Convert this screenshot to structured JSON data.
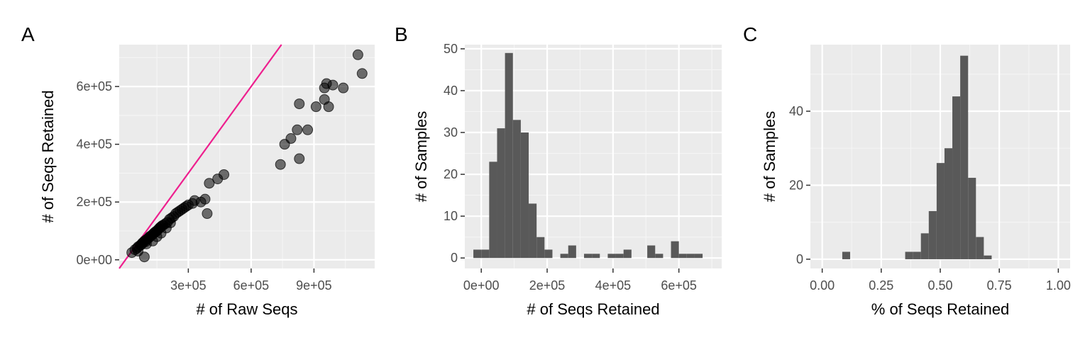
{
  "colors": {
    "panel_bg": "#ebebeb",
    "grid_major": "#ffffff",
    "grid_minor": "#f5f5f5",
    "bar_fill": "#595959",
    "point_fill": "#000000",
    "reference_line": "#ee1f8e",
    "tick_label": "#4d4d4d"
  },
  "chart_data": [
    {
      "panel": "A",
      "type": "scatter",
      "xlabel": "# of Raw Seqs",
      "ylabel": "# of Seqs Retained",
      "xlim": [
        -30000,
        1190000
      ],
      "ylim": [
        -30000,
        745000
      ],
      "x_ticks": [
        300000,
        600000,
        900000
      ],
      "x_tick_labels": [
        "3e+05",
        "6e+05",
        "9e+05"
      ],
      "y_ticks": [
        0,
        200000,
        400000,
        600000
      ],
      "y_tick_labels": [
        "0e+00",
        "2e+05",
        "4e+05",
        "6e+05"
      ],
      "grid": true,
      "reference_line": {
        "slope": 1,
        "intercept": 0,
        "color": "#ee1f8e"
      },
      "points": [
        [
          30000,
          25000
        ],
        [
          45000,
          35000
        ],
        [
          55000,
          40000
        ],
        [
          60000,
          45000
        ],
        [
          70000,
          50000
        ],
        [
          75000,
          52000
        ],
        [
          80000,
          58000
        ],
        [
          85000,
          60000
        ],
        [
          90000,
          65000
        ],
        [
          95000,
          62000
        ],
        [
          100000,
          70000
        ],
        [
          105000,
          72000
        ],
        [
          110000,
          75000
        ],
        [
          115000,
          80000
        ],
        [
          120000,
          82000
        ],
        [
          125000,
          85000
        ],
        [
          130000,
          88000
        ],
        [
          135000,
          92000
        ],
        [
          140000,
          95000
        ],
        [
          145000,
          98000
        ],
        [
          150000,
          100000
        ],
        [
          155000,
          104000
        ],
        [
          160000,
          108000
        ],
        [
          165000,
          112000
        ],
        [
          170000,
          115000
        ],
        [
          175000,
          118000
        ],
        [
          180000,
          120000
        ],
        [
          190000,
          125000
        ],
        [
          200000,
          130000
        ],
        [
          210000,
          140000
        ],
        [
          220000,
          145000
        ],
        [
          230000,
          150000
        ],
        [
          240000,
          160000
        ],
        [
          250000,
          165000
        ],
        [
          260000,
          170000
        ],
        [
          270000,
          175000
        ],
        [
          280000,
          180000
        ],
        [
          290000,
          185000
        ],
        [
          300000,
          190000
        ],
        [
          320000,
          195000
        ],
        [
          330000,
          205000
        ],
        [
          360000,
          200000
        ],
        [
          380000,
          210000
        ],
        [
          390000,
          160000
        ],
        [
          400000,
          265000
        ],
        [
          440000,
          280000
        ],
        [
          470000,
          295000
        ],
        [
          90000,
          10000
        ],
        [
          100000,
          55000
        ],
        [
          130000,
          65000
        ],
        [
          150000,
          80000
        ],
        [
          170000,
          92000
        ],
        [
          195000,
          110000
        ],
        [
          215000,
          128000
        ],
        [
          60000,
          30000
        ],
        [
          740000,
          330000
        ],
        [
          760000,
          400000
        ],
        [
          790000,
          420000
        ],
        [
          820000,
          450000
        ],
        [
          830000,
          350000
        ],
        [
          830000,
          540000
        ],
        [
          870000,
          450000
        ],
        [
          910000,
          530000
        ],
        [
          950000,
          555000
        ],
        [
          950000,
          595000
        ],
        [
          960000,
          610000
        ],
        [
          970000,
          530000
        ],
        [
          990000,
          605000
        ],
        [
          1040000,
          595000
        ],
        [
          1110000,
          710000
        ],
        [
          1130000,
          645000
        ]
      ]
    },
    {
      "panel": "B",
      "type": "bar",
      "xlabel": "# of Seqs Retained",
      "ylabel": "# of Samples",
      "xlim": [
        -50000,
        730000
      ],
      "ylim": [
        -2.5,
        51
      ],
      "x_ticks": [
        0,
        200000,
        400000,
        600000
      ],
      "x_tick_labels": [
        "0e+00",
        "2e+05",
        "4e+05",
        "6e+05"
      ],
      "y_ticks": [
        0,
        10,
        20,
        30,
        40,
        50
      ],
      "y_tick_labels": [
        "0",
        "10",
        "20",
        "30",
        "40",
        "50"
      ],
      "grid": true,
      "bin_start": -24000,
      "bin_width": 24000,
      "values": [
        2,
        2,
        23,
        31,
        49,
        33,
        30,
        13,
        5,
        2,
        0,
        1,
        3,
        0,
        1,
        1,
        0,
        1,
        1,
        2,
        0,
        0,
        3,
        1,
        0,
        4,
        1,
        1,
        1
      ]
    },
    {
      "panel": "C",
      "type": "bar",
      "xlabel": "% of Seqs Retained",
      "ylabel": "# of Samples",
      "xlim": [
        -0.05,
        1.05
      ],
      "ylim": [
        -2.5,
        58
      ],
      "x_ticks": [
        0,
        0.25,
        0.5,
        0.75,
        1
      ],
      "x_tick_labels": [
        "0.00",
        "0.25",
        "0.50",
        "0.75",
        "1.00"
      ],
      "y_ticks": [
        0,
        20,
        40
      ],
      "y_tick_labels": [
        "0",
        "20",
        "40"
      ],
      "grid": true,
      "bin_start": 0.085,
      "bin_width": 0.0333,
      "values": [
        2,
        0,
        0,
        0,
        0,
        0,
        0,
        0,
        2,
        2,
        7,
        13,
        26,
        30,
        44,
        55,
        22,
        6,
        1
      ]
    }
  ]
}
